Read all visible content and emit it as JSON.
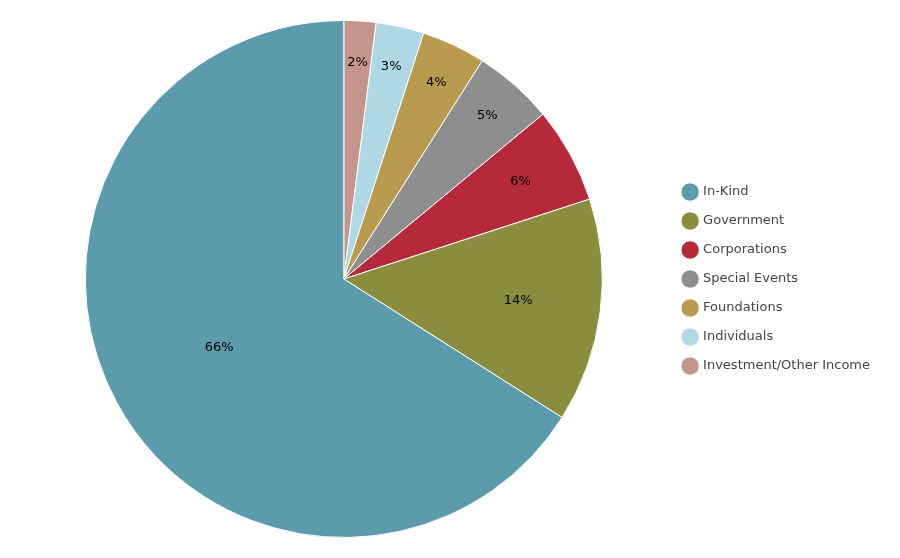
{
  "chart_data": {
    "type": "pie",
    "categories": [
      "Investment/Other Income",
      "Individuals",
      "Foundations",
      "Special Events",
      "Corporations",
      "Government",
      "In-Kind"
    ],
    "values": [
      2,
      3,
      4,
      5,
      6,
      14,
      66
    ],
    "value_labels": [
      "2%",
      "3%",
      "4%",
      "5%",
      "6%",
      "14%",
      "66%"
    ],
    "colors": [
      "#c4968a",
      "#aed8e6",
      "#b89b4e",
      "#8e8e8e",
      "#b5293a",
      "#8b8c3e",
      "#5b9bab"
    ],
    "data_labels": true,
    "legend": "right"
  }
}
